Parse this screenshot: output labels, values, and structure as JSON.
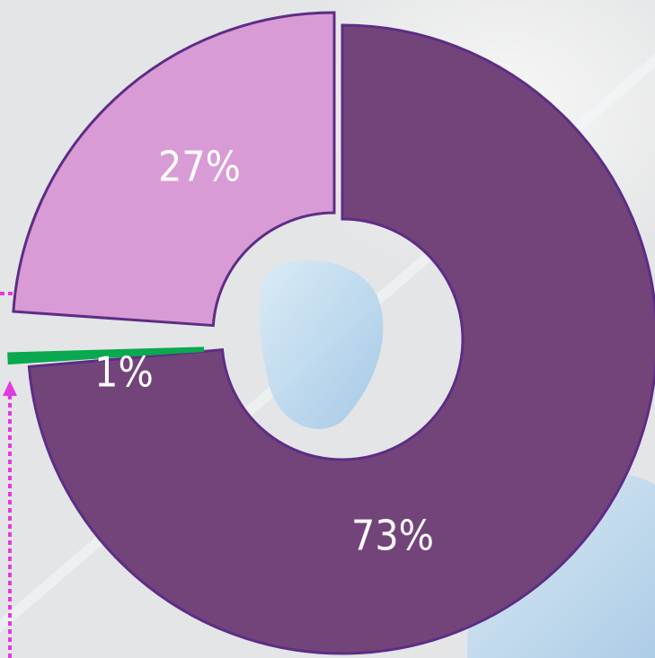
{
  "chart_data": {
    "type": "pie",
    "style": "donut-exploded",
    "slices": [
      {
        "label": "73%",
        "value": 73,
        "color": "#734479"
      },
      {
        "label": "27%",
        "value": 27,
        "color": "#d99bd6"
      },
      {
        "label": "1%",
        "value": 1,
        "color": "#0aa84f"
      }
    ],
    "title": "",
    "legend": "none"
  },
  "colors": {
    "callout_arrow": "#e23ae0",
    "slice_outline": "#5d2d86",
    "background": "#e6e7e8"
  }
}
